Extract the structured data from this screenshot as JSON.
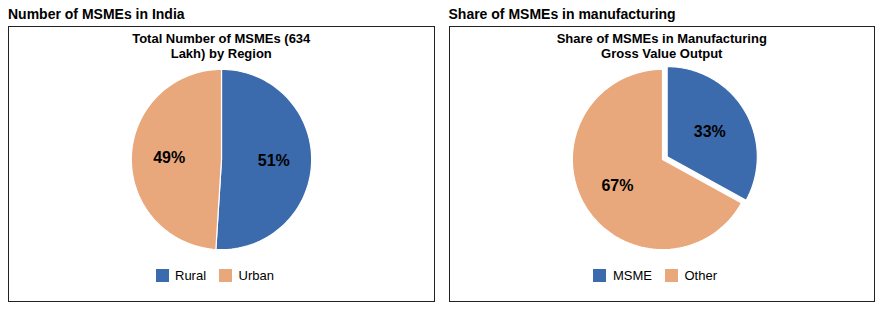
{
  "chart_data": [
    {
      "type": "pie",
      "title": "Number of MSMEs in India",
      "subtitle": "Total Number of MSMEs (634\nLakh) by Region",
      "categories": [
        "Rural",
        "Urban"
      ],
      "values": [
        51,
        49
      ],
      "value_labels": [
        "51%",
        "49%"
      ],
      "data_labels": true,
      "colors": [
        "#3B6BAD",
        "#E8A87C"
      ],
      "legend": "bottom"
    },
    {
      "type": "pie",
      "title": "Share of MSMEs in manufacturing",
      "subtitle": "Share of MSMEs in Manufacturing\nGross Value Output",
      "categories": [
        "MSME",
        "Other"
      ],
      "values": [
        33,
        67
      ],
      "value_labels": [
        "33%",
        "67%"
      ],
      "data_labels": true,
      "colors": [
        "#3B6BAD",
        "#E8A87C"
      ],
      "legend": "bottom"
    }
  ]
}
